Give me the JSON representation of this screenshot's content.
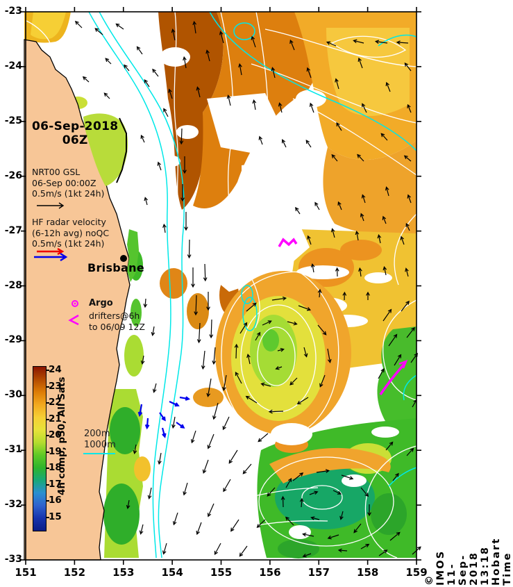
{
  "stamp": {
    "date": "06-Sep-2018",
    "time": "06Z"
  },
  "legend_gsl": {
    "title": "NRT00 GSL",
    "subtitle": "06-Sep 00:00Z",
    "scale": "0.5m/s (1kt 24h)"
  },
  "legend_hf": {
    "title": "HF radar velocity",
    "subtitle": "(6-12h avg) noQC",
    "scale": "0.5m/s (1kt 24h)"
  },
  "city_label": "Brisbane",
  "markers": {
    "argo": "Argo",
    "drifters_line1": "drifters@6h",
    "drifters_line2": "to 06/09 12Z"
  },
  "bathy": {
    "l200": "200m",
    "l1000": "1000m"
  },
  "colorbar": {
    "label": "4h comp, p50, All Sats",
    "ticks": [
      24,
      23,
      22,
      21,
      20,
      19,
      18,
      17,
      16,
      15
    ],
    "gradient": [
      "#8a1500",
      "#b34a00",
      "#dd7c05",
      "#f2a81e",
      "#f6cf35",
      "#e7e23a",
      "#b5dc2e",
      "#5fc926",
      "#2eb42c",
      "#18a878",
      "#2a8fd0",
      "#2f62cd",
      "#1733ad",
      "#0b1d86"
    ]
  },
  "axes": {
    "x_ticks": [
      151,
      152,
      153,
      154,
      155,
      156,
      157,
      158,
      159
    ],
    "y_ticks": [
      -23,
      -24,
      -25,
      -26,
      -27,
      -28,
      -29,
      -30,
      -31,
      -32,
      -33
    ]
  },
  "copyright": "© IMOS 11-Sep-2018 13:18 Hobart Time",
  "colors": {
    "land": "#f7c697",
    "bathy": "#00e8e8",
    "contour": "#ffffff",
    "vector": "#000000",
    "hf_blue": "#0000ee",
    "hf_red": "#ee0000",
    "drifter": "#ff00ff",
    "sea_nodata": "#ffffff"
  },
  "map": {
    "arrows": [
      [
        118,
        40,
        225,
        13
      ],
      [
        148,
        50,
        220,
        14
      ],
      [
        178,
        42,
        215,
        13
      ],
      [
        205,
        78,
        235,
        13
      ],
      [
        160,
        92,
        225,
        11
      ],
      [
        186,
        102,
        230,
        11
      ],
      [
        228,
        110,
        232,
        13
      ],
      [
        128,
        118,
        222,
        11
      ],
      [
        158,
        142,
        226,
        11
      ],
      [
        215,
        125,
        236,
        12
      ],
      [
        242,
        168,
        242,
        13
      ],
      [
        208,
        205,
        246,
        11
      ],
      [
        232,
        245,
        250,
        12
      ],
      [
        212,
        295,
        255,
        11
      ],
      [
        238,
        335,
        262,
        12
      ],
      [
        252,
        58,
        258,
        16
      ],
      [
        282,
        48,
        262,
        17
      ],
      [
        268,
        98,
        260,
        16
      ],
      [
        302,
        88,
        256,
        16
      ],
      [
        322,
        62,
        255,
        17
      ],
      [
        288,
        140,
        256,
        15
      ],
      [
        248,
        142,
        252,
        14
      ],
      [
        332,
        152,
        257,
        15
      ],
      [
        348,
        108,
        260,
        16
      ],
      [
        368,
        68,
        252,
        16
      ],
      [
        396,
        112,
        256,
        15
      ],
      [
        424,
        72,
        248,
        15
      ],
      [
        448,
        112,
        250,
        15
      ],
      [
        368,
        158,
        260,
        14
      ],
      [
        406,
        162,
        256,
        14
      ],
      [
        452,
        162,
        250,
        14
      ],
      [
        488,
        128,
        254,
        15
      ],
      [
        522,
        98,
        250,
        15
      ],
      [
        558,
        62,
        188,
        17
      ],
      [
        588,
        62,
        184,
        16
      ],
      [
        524,
        62,
        194,
        15
      ],
      [
        484,
        66,
        203,
        14
      ],
      [
        592,
        102,
        232,
        14
      ],
      [
        562,
        132,
        248,
        14
      ],
      [
        592,
        162,
        248,
        12
      ],
      [
        528,
        162,
        244,
        14
      ],
      [
        492,
        188,
        238,
        13
      ],
      [
        558,
        202,
        228,
        13
      ],
      [
        592,
        232,
        220,
        12
      ],
      [
        524,
        232,
        226,
        13
      ],
      [
        486,
        232,
        230,
        12
      ],
      [
        448,
        212,
        236,
        12
      ],
      [
        412,
        212,
        244,
        12
      ],
      [
        378,
        208,
        250,
        12
      ],
      [
        560,
        282,
        255,
        13
      ],
      [
        592,
        292,
        250,
        12
      ],
      [
        526,
        292,
        252,
        12
      ],
      [
        492,
        302,
        248,
        12
      ],
      [
        460,
        302,
        240,
        12
      ],
      [
        432,
        308,
        236,
        11
      ],
      [
        524,
        318,
        250,
        11
      ],
      [
        556,
        322,
        248,
        11
      ],
      [
        590,
        332,
        245,
        11
      ],
      [
        262,
        185,
        92,
        22
      ],
      [
        266,
        225,
        90,
        24
      ],
      [
        263,
        265,
        90,
        24
      ],
      [
        268,
        305,
        90,
        26
      ],
      [
        273,
        345,
        91,
        26
      ],
      [
        278,
        385,
        90,
        28
      ],
      [
        283,
        425,
        92,
        28
      ],
      [
        288,
        465,
        93,
        28
      ],
      [
        295,
        505,
        96,
        26
      ],
      [
        304,
        545,
        100,
        26
      ],
      [
        314,
        580,
        105,
        24
      ],
      [
        295,
        380,
        88,
        24
      ],
      [
        300,
        420,
        90,
        26
      ],
      [
        305,
        460,
        92,
        26
      ],
      [
        310,
        500,
        95,
        24
      ],
      [
        326,
        540,
        100,
        22
      ],
      [
        210,
        430,
        95,
        12
      ],
      [
        222,
        470,
        100,
        13
      ],
      [
        207,
        512,
        100,
        12
      ],
      [
        225,
        552,
        105,
        13
      ],
      [
        355,
        448,
        320,
        18
      ],
      [
        392,
        432,
        352,
        20
      ],
      [
        430,
        440,
        20,
        18
      ],
      [
        458,
        468,
        50,
        18
      ],
      [
        472,
        502,
        80,
        20
      ],
      [
        468,
        540,
        112,
        18
      ],
      [
        444,
        572,
        148,
        18
      ],
      [
        408,
        592,
        178,
        20
      ],
      [
        370,
        580,
        212,
        18
      ],
      [
        348,
        552,
        242,
        18
      ],
      [
        340,
        516,
        272,
        20
      ],
      [
        346,
        480,
        302,
        18
      ],
      [
        378,
        468,
        335,
        14
      ],
      [
        414,
        463,
        15,
        14
      ],
      [
        438,
        500,
        75,
        14
      ],
      [
        428,
        544,
        135,
        14
      ],
      [
        390,
        556,
        195,
        14
      ],
      [
        360,
        524,
        258,
        14
      ],
      [
        368,
        490,
        300,
        13
      ],
      [
        400,
        505,
        345,
        9
      ],
      [
        406,
        528,
        160,
        9
      ],
      [
        448,
        352,
        250,
        13
      ],
      [
        482,
        342,
        255,
        13
      ],
      [
        516,
        346,
        260,
        13
      ],
      [
        548,
        350,
        258,
        12
      ],
      [
        582,
        352,
        250,
        12
      ],
      [
        452,
        392,
        260,
        12
      ],
      [
        486,
        398,
        268,
        12
      ],
      [
        520,
        398,
        262,
        12
      ],
      [
        556,
        396,
        258,
        12
      ],
      [
        588,
        398,
        255,
        12
      ],
      [
        460,
        428,
        275,
        11
      ],
      [
        496,
        432,
        272,
        11
      ],
      [
        530,
        432,
        270,
        11
      ],
      [
        552,
        462,
        305,
        20
      ],
      [
        578,
        448,
        308,
        18
      ],
      [
        560,
        498,
        305,
        20
      ],
      [
        586,
        486,
        308,
        18
      ],
      [
        568,
        526,
        302,
        18
      ],
      [
        592,
        522,
        305,
        16
      ],
      [
        545,
        545,
        300,
        16
      ],
      [
        594,
        586,
        300,
        12
      ],
      [
        308,
        625,
        112,
        22
      ],
      [
        342,
        648,
        122,
        22
      ],
      [
        300,
        662,
        110,
        20
      ],
      [
        332,
        690,
        120,
        20
      ],
      [
        362,
        668,
        130,
        18
      ],
      [
        308,
        725,
        114,
        20
      ],
      [
        344,
        748,
        124,
        20
      ],
      [
        290,
        752,
        110,
        18
      ],
      [
        318,
        782,
        118,
        18
      ],
      [
        356,
        786,
        126,
        18
      ],
      [
        270,
        695,
        106,
        18
      ],
      [
        256,
        738,
        108,
        18
      ],
      [
        240,
        782,
        106,
        16
      ],
      [
        232,
        652,
        100,
        16
      ],
      [
        218,
        702,
        102,
        16
      ],
      [
        386,
        624,
        140,
        18
      ],
      [
        396,
        702,
        132,
        16
      ],
      [
        382,
        748,
        136,
        16
      ],
      [
        282,
        620,
        108,
        18
      ],
      [
        252,
        600,
        100,
        16
      ],
      [
        330,
        600,
        115,
        20
      ],
      [
        196,
        640,
        100,
        13
      ],
      [
        206,
        755,
        104,
        14
      ],
      [
        186,
        720,
        100,
        12
      ],
      [
        422,
        692,
        322,
        18
      ],
      [
        456,
        680,
        352,
        18
      ],
      [
        492,
        684,
        18,
        17
      ],
      [
        520,
        702,
        50,
        16
      ],
      [
        532,
        726,
        90,
        16
      ],
      [
        520,
        754,
        128,
        16
      ],
      [
        488,
        770,
        162,
        16
      ],
      [
        452,
        772,
        192,
        16
      ],
      [
        423,
        756,
        226,
        16
      ],
      [
        408,
        730,
        268,
        15
      ],
      [
        412,
        702,
        300,
        15
      ],
      [
        446,
        712,
        340,
        12
      ],
      [
        480,
        706,
        25,
        12
      ],
      [
        494,
        736,
        105,
        12
      ],
      [
        460,
        748,
        195,
        12
      ],
      [
        434,
        730,
        275,
        12
      ],
      [
        562,
        778,
        320,
        18
      ],
      [
        594,
        798,
        318,
        16
      ],
      [
        546,
        800,
        325,
        14
      ],
      [
        520,
        790,
        330,
        13
      ],
      [
        556,
        648,
        310,
        15
      ],
      [
        586,
        656,
        312,
        14
      ],
      [
        566,
        692,
        308,
        13
      ],
      [
        448,
        797,
        160,
        12
      ],
      [
        500,
        793,
        185,
        12
      ]
    ],
    "hf_arrows": [
      [
        204,
        582,
        100,
        16
      ],
      [
        213,
        602,
        95,
        14
      ],
      [
        230,
        594,
        55,
        13
      ],
      [
        244,
        578,
        25,
        14
      ],
      [
        259,
        572,
        10,
        13
      ],
      [
        234,
        616,
        75,
        13
      ],
      [
        254,
        608,
        35,
        13
      ]
    ]
  }
}
